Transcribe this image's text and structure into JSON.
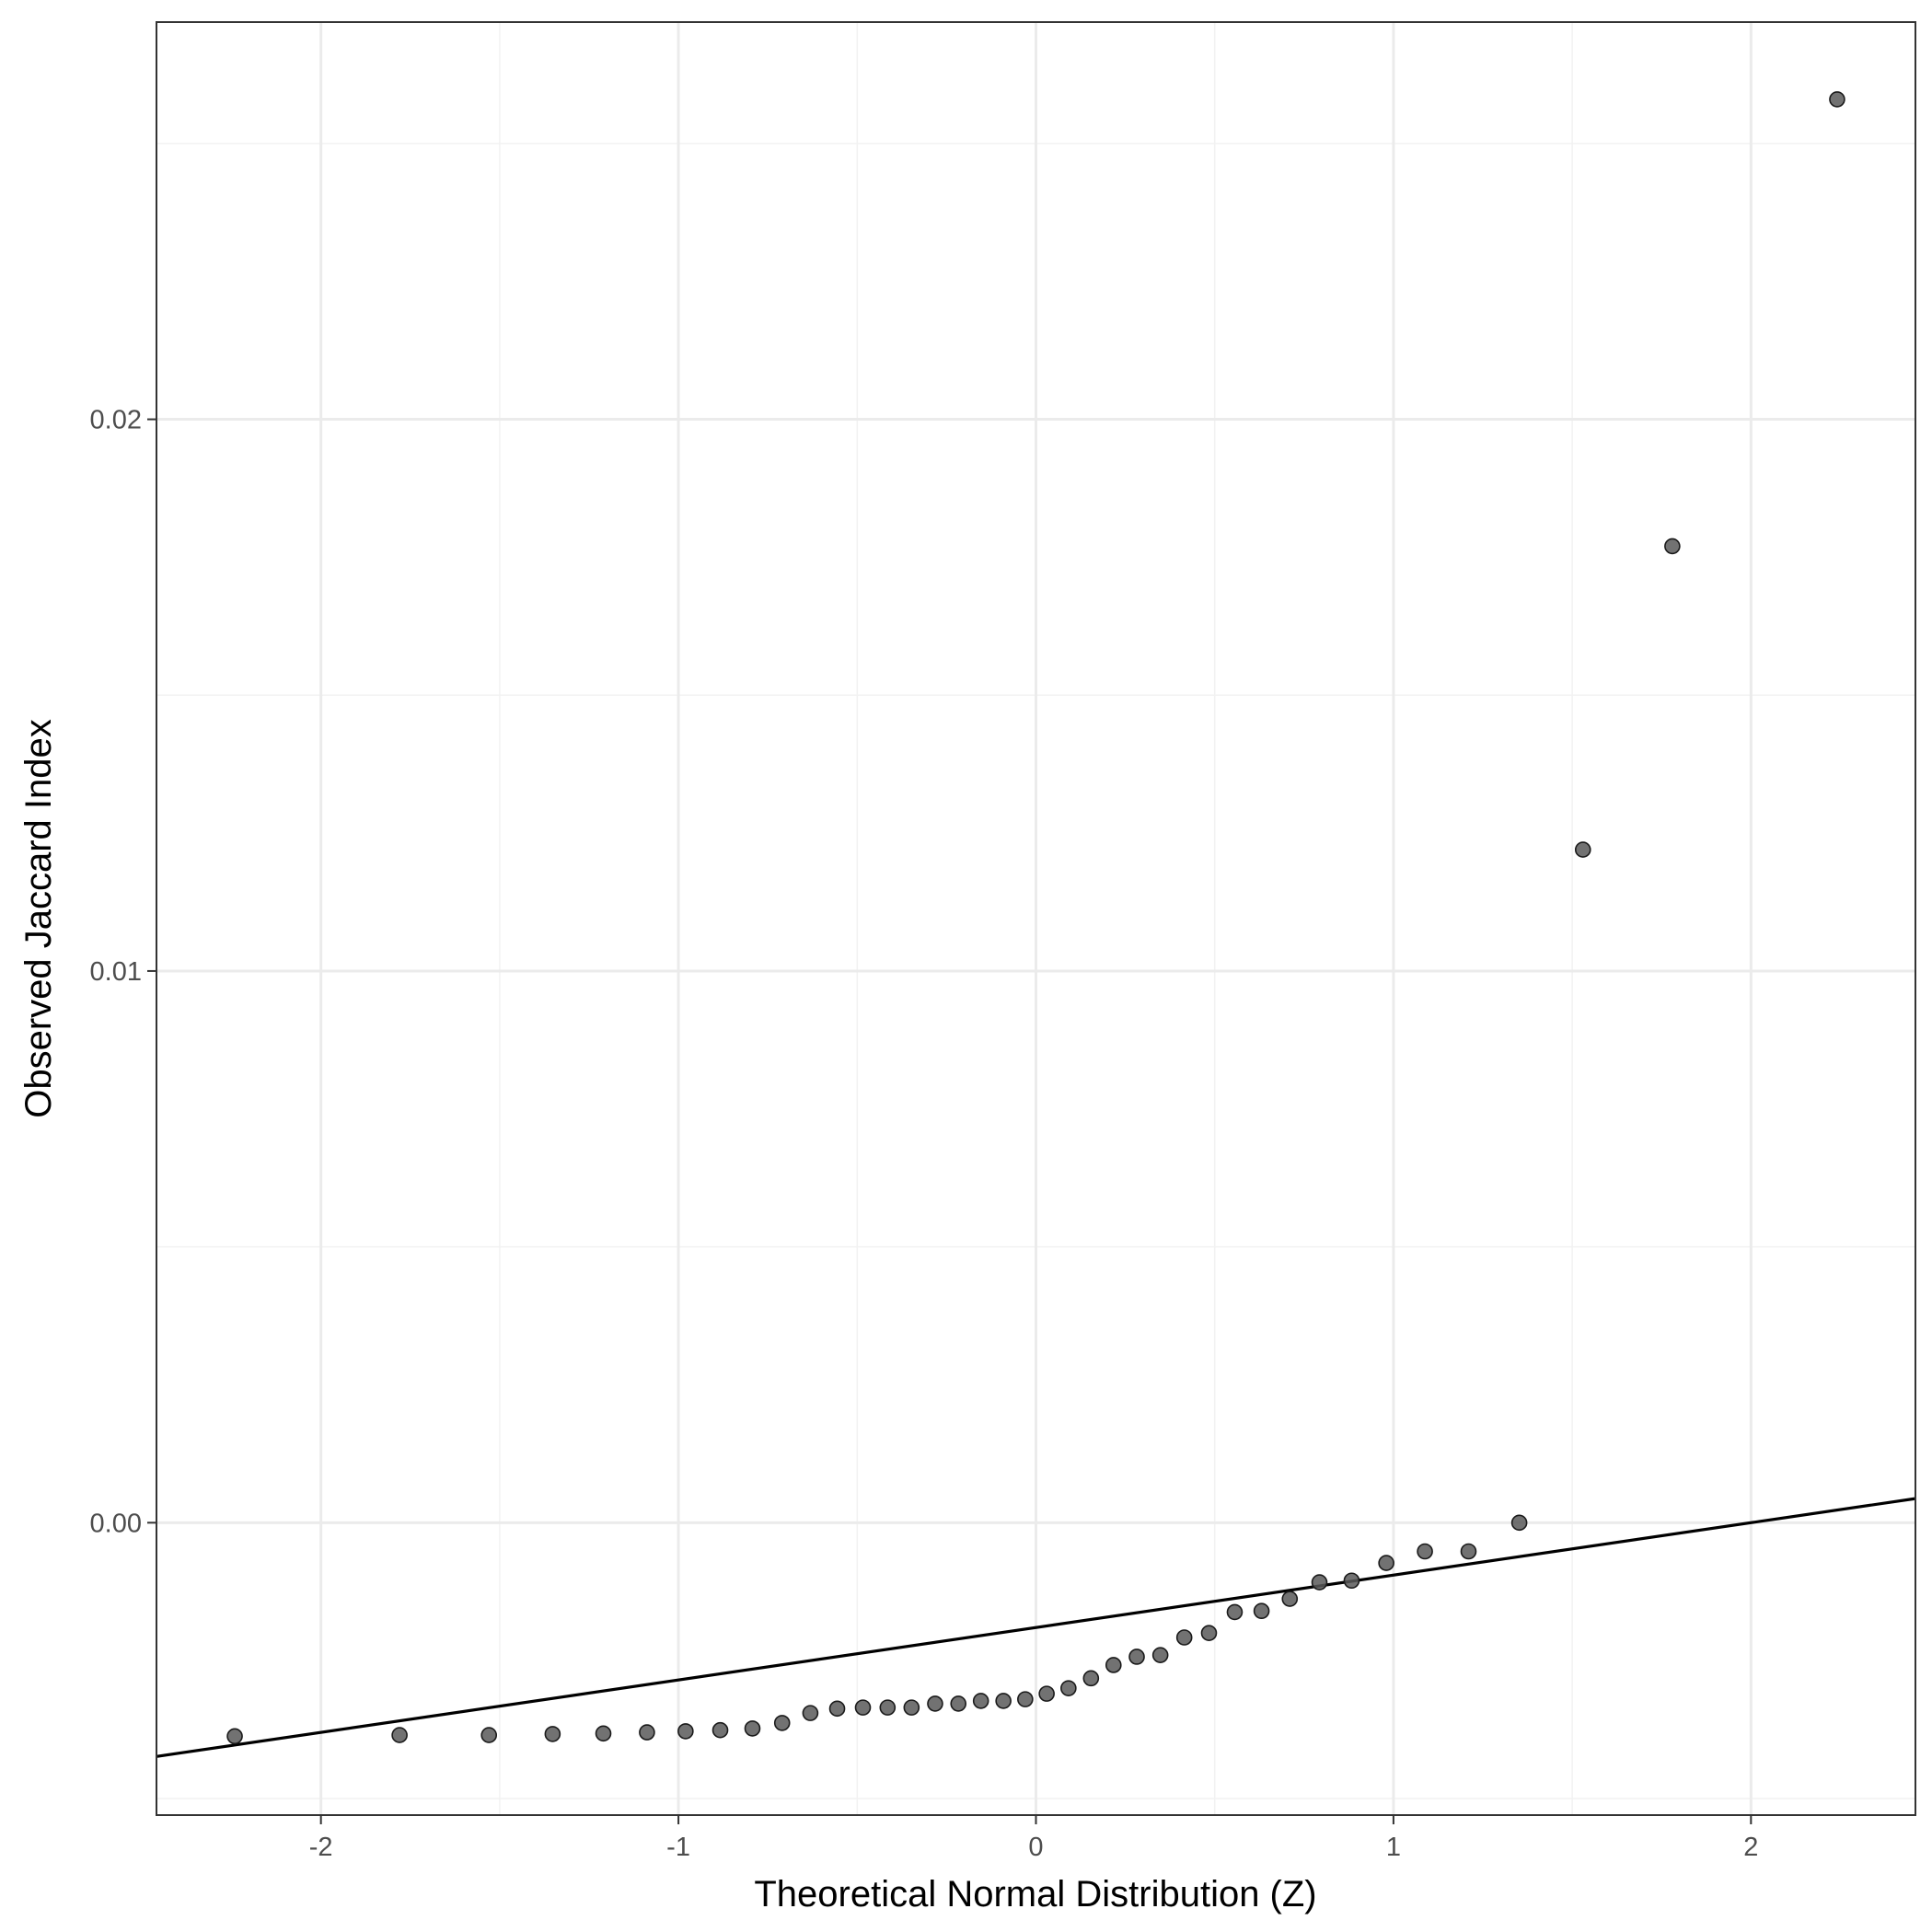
{
  "chart_data": {
    "type": "scatter",
    "title": "",
    "xlabel": "Theoretical Normal Distribution (Z)",
    "ylabel": "Observed Jaccard Index",
    "xlim": [
      -2.46,
      2.46
    ],
    "ylim": [
      -0.0053,
      0.0272
    ],
    "x_ticks": [
      -2,
      -1,
      0,
      1,
      2
    ],
    "x_tick_labels": [
      "-2",
      "-1",
      "0",
      "1",
      "2"
    ],
    "y_ticks": [
      0.0,
      0.01,
      0.02
    ],
    "y_tick_labels": [
      "0.00",
      "0.01",
      "0.02"
    ],
    "grid": true,
    "legend": "none",
    "point_color": "#595959",
    "line_color": "#000000",
    "reference_line": {
      "intercept": -0.0019,
      "slope": 0.00095
    },
    "points": {
      "x": [
        -2.241,
        -1.78,
        -1.53,
        -1.352,
        -1.21,
        -1.088,
        -0.98,
        -0.883,
        -0.793,
        -0.71,
        -0.631,
        -0.556,
        -0.484,
        -0.415,
        -0.348,
        -0.282,
        -0.217,
        -0.154,
        -0.091,
        -0.03,
        0.03,
        0.091,
        0.154,
        0.217,
        0.282,
        0.348,
        0.415,
        0.484,
        0.556,
        0.631,
        0.71,
        0.793,
        0.883,
        0.98,
        1.088,
        1.21,
        1.352,
        1.53,
        1.78,
        2.241
      ],
      "y": [
        -0.00387,
        -0.00385,
        -0.00385,
        -0.00383,
        -0.00382,
        -0.0038,
        -0.00378,
        -0.00376,
        -0.00373,
        -0.00363,
        -0.00345,
        -0.00337,
        -0.00335,
        -0.00335,
        -0.00335,
        -0.00328,
        -0.00328,
        -0.00323,
        -0.00323,
        -0.0032,
        -0.0031,
        -0.003,
        -0.00282,
        -0.00258,
        -0.00243,
        -0.0024,
        -0.00208,
        -0.002,
        -0.00162,
        -0.0016,
        -0.00138,
        -0.00108,
        -0.00105,
        -0.00073,
        -0.00052,
        -0.00052,
        0.0,
        0.0122,
        0.0177,
        0.0258
      ]
    }
  }
}
